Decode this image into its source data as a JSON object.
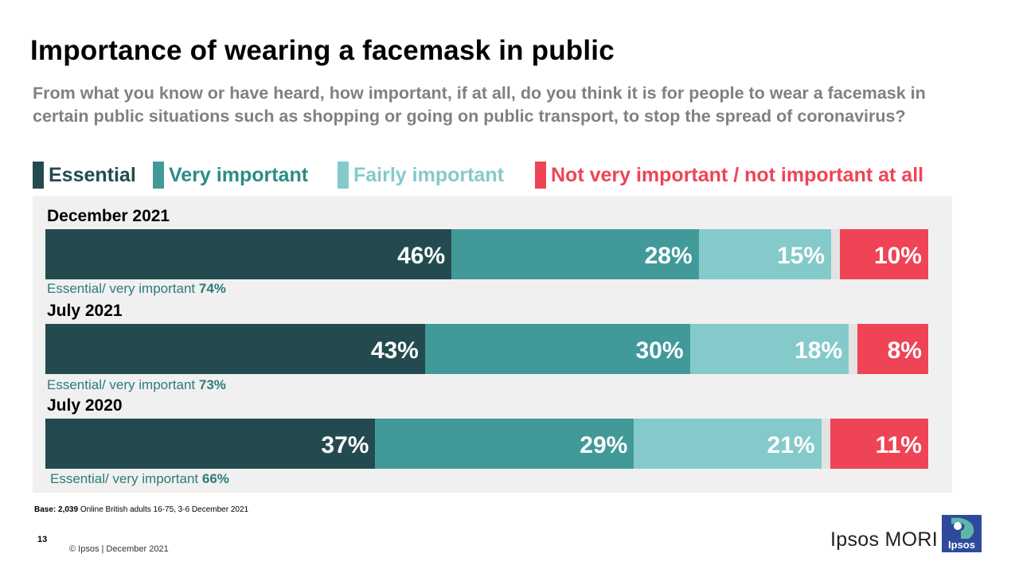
{
  "title": "Importance of wearing a facemask in public",
  "subtitle": "From what you know or have heard, how important, if at all, do you think it is for people to wear a facemask in certain public situations such as shopping or going on public transport, to stop the spread of coronavirus?",
  "colors": {
    "essential": "#234b4f",
    "very_important": "#419a99",
    "fairly_important": "#85caca",
    "dont_know": "#e3e3e3",
    "not_important": "#ef4456",
    "net_text": "#2d7b79"
  },
  "legend": [
    {
      "label": "Essential",
      "color": "#234b4f"
    },
    {
      "label": "Very important",
      "color": "#419a99"
    },
    {
      "label": "Fairly important",
      "color": "#85caca"
    },
    {
      "label": "Not very important / not important at all",
      "color": "#ef4456"
    }
  ],
  "chart_data": {
    "type": "bar",
    "orientation": "horizontal",
    "stacked": true,
    "unit": "%",
    "categories": [
      "December 2021",
      "July 2021",
      "July 2020"
    ],
    "series": [
      {
        "name": "Essential",
        "values": [
          46,
          43,
          37
        ],
        "labels": [
          "46%",
          "43%",
          "37%"
        ]
      },
      {
        "name": "Very important",
        "values": [
          28,
          30,
          29
        ],
        "labels": [
          "28%",
          "30%",
          "29%"
        ]
      },
      {
        "name": "Fairly important",
        "values": [
          15,
          18,
          21
        ],
        "labels": [
          "15%",
          "18%",
          "21%"
        ]
      },
      {
        "values": [
          1,
          1,
          1
        ],
        "labels": [
          "",
          "",
          ""
        ]
      },
      {
        "name": "Not very important / not important at all",
        "values": [
          10,
          8,
          11
        ],
        "labels": [
          "10%",
          "8%",
          "11%"
        ]
      }
    ],
    "net": {
      "label": "Essential/ very important",
      "values": [
        "74%",
        "73%",
        "66%"
      ]
    },
    "xlim": [
      0,
      100
    ],
    "grid": false,
    "legend_position": "top"
  },
  "base": {
    "label": "Base:",
    "value": "2,039",
    "text": "Online British adults 16-75, 3-6 December 2021"
  },
  "page_number": "13",
  "copyright": "© Ipsos | December 2021",
  "brand": "Ipsos MORI",
  "logo_text": "Ipsos"
}
